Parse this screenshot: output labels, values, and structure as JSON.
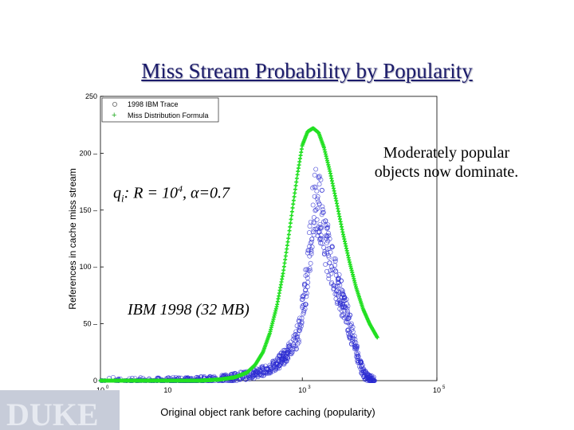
{
  "title": "Miss Stream Probability by Popularity",
  "annotations": {
    "moderate_line1": "Moderately popular",
    "moderate_line2": "objects now dominate.",
    "formula_q": "q",
    "formula_sub": "i",
    "formula_rest1": ": R = 10",
    "formula_sup": "4",
    "formula_rest2": ", ",
    "formula_alpha": "α",
    "formula_rest3": "=0.7",
    "trace_label": "IBM 1998 (32 MB)"
  },
  "colors": {
    "trace": "#2a2ad0",
    "formula": "#22e022",
    "title": "#1c1c6b"
  },
  "chart_data": {
    "type": "scatter",
    "title": "",
    "xlabel": "Original object rank before caching (popularity)",
    "ylabel": "References in cache miss stream",
    "x_scale": "log",
    "xlim": [
      1,
      100000
    ],
    "ylim": [
      0,
      250
    ],
    "x_ticks": [
      {
        "value": 1,
        "base": "10",
        "exp": "0"
      },
      {
        "value": 10,
        "base": "10",
        "exp": ""
      },
      {
        "value": 1000,
        "base": "10",
        "exp": "3"
      },
      {
        "value": 100000,
        "base": "10",
        "exp": "5"
      }
    ],
    "y_ticks": [
      {
        "value": 0,
        "label": "0"
      },
      {
        "value": 50,
        "label": "50"
      },
      {
        "value": 100,
        "label": "100"
      },
      {
        "value": 150,
        "label": "150"
      },
      {
        "value": 200,
        "label": "200"
      },
      {
        "value": 250,
        "label": "250"
      }
    ],
    "legend": {
      "position": "top-left",
      "entries": [
        "1998 IBM Trace",
        "Miss Distribution Formula"
      ]
    },
    "series": [
      {
        "name": "Miss Distribution Formula",
        "marker": "+",
        "x": [
          1,
          10,
          30,
          60,
          100,
          150,
          200,
          260,
          330,
          420,
          520,
          620,
          730,
          850,
          1000,
          1200,
          1450,
          1750,
          2100,
          2600,
          3200,
          4000,
          5000,
          6300,
          8000,
          10000,
          13000
        ],
        "y": [
          0,
          0,
          0,
          1,
          3,
          7,
          14,
          25,
          42,
          66,
          95,
          125,
          155,
          182,
          207,
          219,
          222,
          218,
          205,
          183,
          158,
          130,
          105,
          82,
          63,
          50,
          38
        ]
      },
      {
        "name": "1998 IBM Trace",
        "marker": "o",
        "x": [
          1,
          20,
          50,
          100,
          200,
          300,
          400,
          500,
          600,
          700,
          800,
          900,
          1000,
          1200,
          1400,
          1600,
          1800,
          2000,
          2300,
          2600,
          3000,
          3500,
          4000,
          4700,
          5500,
          6500,
          7500,
          8500,
          10000,
          12000
        ],
        "y": [
          0,
          0,
          1,
          3,
          6,
          10,
          14,
          19,
          24,
          29,
          35,
          45,
          62,
          95,
          140,
          160,
          155,
          140,
          120,
          105,
          92,
          80,
          70,
          55,
          40,
          25,
          12,
          5,
          2,
          0
        ]
      }
    ]
  }
}
